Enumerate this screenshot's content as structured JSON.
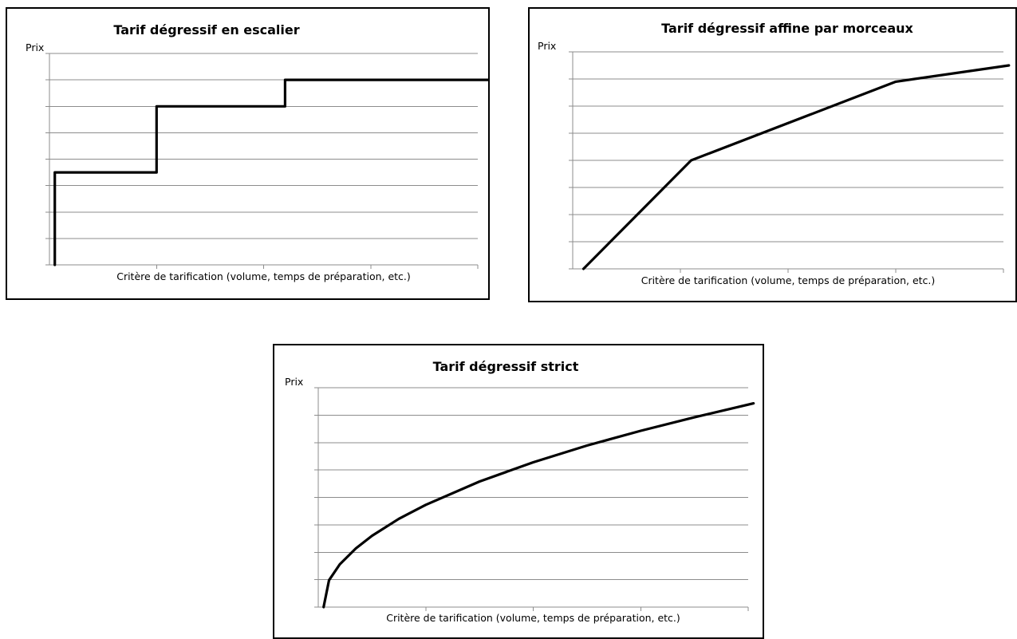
{
  "chart_data": [
    {
      "type": "line",
      "title": "Tarif dégressif en escalier",
      "ylabel": "Prix",
      "xlabel": "Critère de tarification (volume, temps de préparation, etc.)",
      "xlim": [
        0,
        4
      ],
      "ylim": [
        0,
        8
      ],
      "grid": true,
      "x_ticks": 4,
      "y_gridlines": 8,
      "series": [
        {
          "color": "#000000",
          "x": [
            0.05,
            0.05,
            1.0,
            1.0,
            2.2,
            2.2,
            4.1
          ],
          "y": [
            0,
            3.5,
            3.5,
            6,
            6,
            7,
            7
          ]
        }
      ]
    },
    {
      "type": "line",
      "title": "Tarif dégressif affine par morceaux",
      "ylabel": "Prix",
      "xlabel": "Critère de tarification (volume, temps de préparation, etc.)",
      "xlim": [
        0,
        4
      ],
      "ylim": [
        0,
        8
      ],
      "grid": true,
      "x_ticks": 4,
      "y_gridlines": 8,
      "series": [
        {
          "color": "#000000",
          "x": [
            0.1,
            1.1,
            3.0,
            4.05
          ],
          "y": [
            0,
            4,
            6.9,
            7.5
          ]
        }
      ]
    },
    {
      "type": "line",
      "title": "Tarif dégressif strict",
      "ylabel": "Prix",
      "xlabel": "Critère de tarification (volume, temps de préparation, etc.)",
      "xlim": [
        0,
        4
      ],
      "ylim": [
        0,
        8
      ],
      "grid": true,
      "x_ticks": 4,
      "y_gridlines": 8,
      "series": [
        {
          "color": "#000000",
          "x": [
            0.05,
            0.1,
            0.2,
            0.35,
            0.5,
            0.75,
            1.0,
            1.5,
            2.0,
            2.5,
            3.0,
            3.5,
            4.05
          ],
          "y": [
            0,
            0.98,
            1.56,
            2.14,
            2.6,
            3.22,
            3.73,
            4.58,
            5.28,
            5.89,
            6.43,
            6.92,
            7.43
          ]
        }
      ]
    }
  ]
}
